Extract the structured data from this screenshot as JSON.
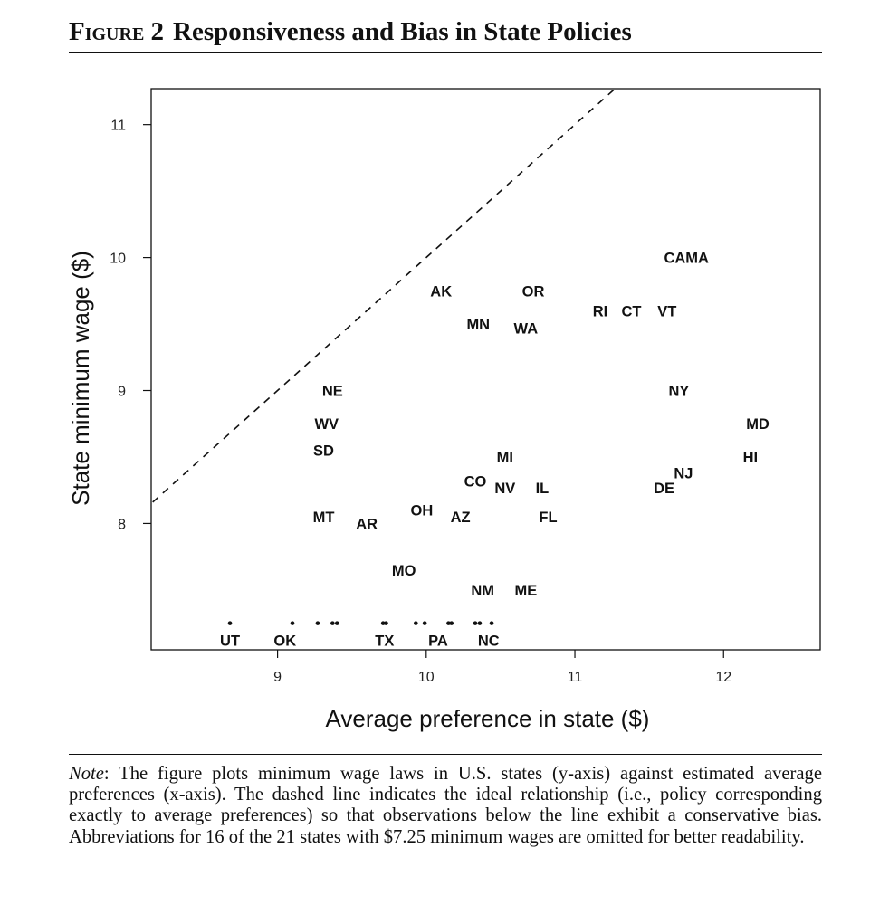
{
  "figure": {
    "label": "Figure 2",
    "title": "Responsiveness and Bias in State Policies"
  },
  "note": {
    "prefix": "Note",
    "text": ": The figure plots minimum wage laws in U.S. states (y-axis) against estimated average preferences (x-axis). The dashed line indicates the ideal relationship (i.e., policy corresponding exactly to average preferences) so that observations below the line exhibit a conservative bias. Abbreviations for 16 of the 21 states with $7.25 minimum wages are omitted for better readability."
  },
  "chart_data": {
    "type": "scatter",
    "title": "",
    "xlabel": "Average preference in state ($)",
    "ylabel": "State minimum wage ($)",
    "xlim": [
      8.15,
      12.65
    ],
    "ylim": [
      7.05,
      11.27
    ],
    "xticks": [
      9,
      10,
      11,
      12
    ],
    "yticks": [
      8,
      9,
      10,
      11
    ],
    "grid": false,
    "reference_line": {
      "style": "dashed",
      "description": "y = x",
      "slope": 1,
      "intercept": 0
    },
    "labeled_points": [
      {
        "label": "CAMA",
        "x": 11.75,
        "y": 10.0
      },
      {
        "label": "AK",
        "x": 10.1,
        "y": 9.75
      },
      {
        "label": "OR",
        "x": 10.72,
        "y": 9.75
      },
      {
        "label": "MN",
        "x": 10.35,
        "y": 9.5
      },
      {
        "label": "WA",
        "x": 10.67,
        "y": 9.47
      },
      {
        "label": "RI",
        "x": 11.17,
        "y": 9.6
      },
      {
        "label": "CT",
        "x": 11.38,
        "y": 9.6
      },
      {
        "label": "VT",
        "x": 11.62,
        "y": 9.6
      },
      {
        "label": "NE",
        "x": 9.37,
        "y": 9.0
      },
      {
        "label": "NY",
        "x": 11.7,
        "y": 9.0
      },
      {
        "label": "WV",
        "x": 9.33,
        "y": 8.75
      },
      {
        "label": "MD",
        "x": 12.23,
        "y": 8.75
      },
      {
        "label": "SD",
        "x": 9.31,
        "y": 8.55
      },
      {
        "label": "MI",
        "x": 10.53,
        "y": 8.5
      },
      {
        "label": "HI",
        "x": 12.18,
        "y": 8.5
      },
      {
        "label": "NJ",
        "x": 11.73,
        "y": 8.38
      },
      {
        "label": "CO",
        "x": 10.33,
        "y": 8.32
      },
      {
        "label": "NV",
        "x": 10.53,
        "y": 8.27
      },
      {
        "label": "IL",
        "x": 10.78,
        "y": 8.27
      },
      {
        "label": "DE",
        "x": 11.6,
        "y": 8.27
      },
      {
        "label": "MT",
        "x": 9.31,
        "y": 8.05
      },
      {
        "label": "AR",
        "x": 9.6,
        "y": 8.0
      },
      {
        "label": "OH",
        "x": 9.97,
        "y": 8.1
      },
      {
        "label": "AZ",
        "x": 10.23,
        "y": 8.05
      },
      {
        "label": "FL",
        "x": 10.82,
        "y": 8.05
      },
      {
        "label": "MO",
        "x": 9.85,
        "y": 7.65
      },
      {
        "label": "NM",
        "x": 10.38,
        "y": 7.5
      },
      {
        "label": "ME",
        "x": 10.67,
        "y": 7.5
      }
    ],
    "bottom_labels": [
      {
        "label": "UT",
        "x": 8.68
      },
      {
        "label": "OK",
        "x": 9.05
      },
      {
        "label": "TX",
        "x": 9.72
      },
      {
        "label": "PA",
        "x": 10.08
      },
      {
        "label": "NC",
        "x": 10.42
      }
    ],
    "unlabeled_points_y": 7.25,
    "unlabeled_points_x": [
      8.68,
      9.1,
      9.27,
      9.37,
      9.4,
      9.71,
      9.73,
      9.93,
      9.99,
      10.15,
      10.17,
      10.33,
      10.36,
      10.44
    ]
  }
}
